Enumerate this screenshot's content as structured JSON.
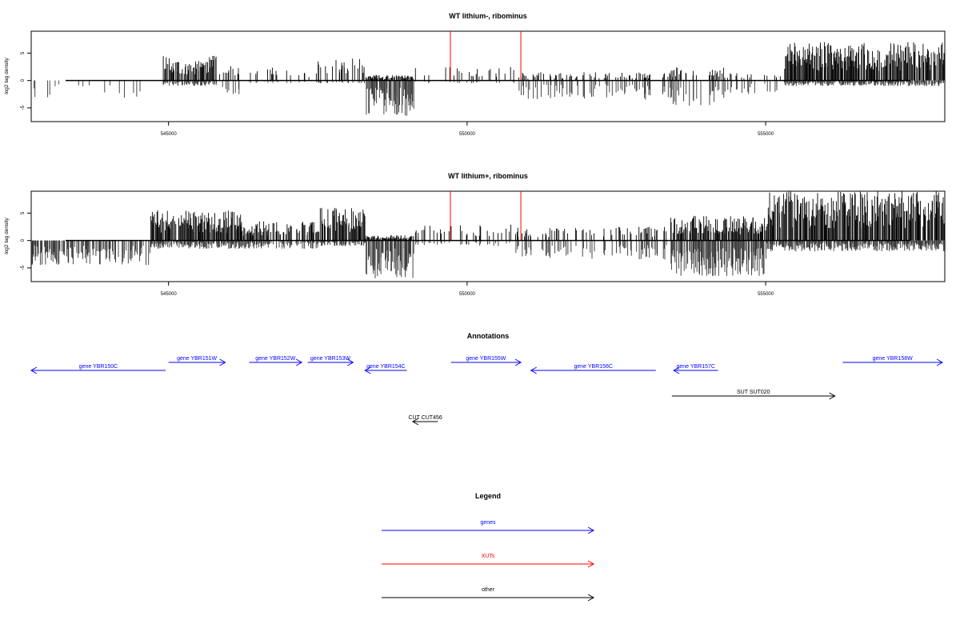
{
  "colors": {
    "genes": "#0000ff",
    "xuts": "#ff0000",
    "other": "#000000",
    "bars": "#000000"
  },
  "chart_data": [
    {
      "type": "bar",
      "title": "WT lithium-, ribominus",
      "ylabel": "log2 tag density",
      "xlim": [
        542700,
        558000
      ],
      "ylim": [
        -7.5,
        9
      ],
      "x_ticks": [
        545000,
        550000,
        555000
      ],
      "y_ticks": [
        -5,
        0,
        5
      ],
      "x_tick_labels": [
        "545000",
        "550000",
        "555000"
      ],
      "y_tick_labels": [
        "-5",
        "0",
        "5"
      ],
      "profile": [
        {
          "start": 542700,
          "end": 544700,
          "up": 0,
          "down": 3.5,
          "density": 0.12
        },
        {
          "start": 544900,
          "end": 545800,
          "up": 4.5,
          "down": 1.0,
          "density": 0.9
        },
        {
          "start": 545800,
          "end": 546200,
          "up": 3.0,
          "down": 2.5,
          "density": 0.3
        },
        {
          "start": 546200,
          "end": 547500,
          "up": 2.5,
          "down": 0.5,
          "density": 0.2
        },
        {
          "start": 547500,
          "end": 548300,
          "up": 4.0,
          "down": 0.5,
          "density": 0.35
        },
        {
          "start": 548300,
          "end": 549100,
          "up": 1.0,
          "down": 6.5,
          "density": 1.0
        },
        {
          "start": 549100,
          "end": 550800,
          "up": 2.5,
          "down": 0.5,
          "density": 0.2
        },
        {
          "start": 550800,
          "end": 553400,
          "up": 1.5,
          "down": 3.5,
          "density": 0.3
        },
        {
          "start": 553400,
          "end": 554300,
          "up": 2.5,
          "down": 5.0,
          "density": 0.5
        },
        {
          "start": 554300,
          "end": 555300,
          "up": 1.5,
          "down": 2.5,
          "density": 0.2
        },
        {
          "start": 555300,
          "end": 558000,
          "up": 7.0,
          "down": 1.0,
          "density": 1.0
        }
      ],
      "highlights": [
        {
          "x": 549720,
          "y": 9
        },
        {
          "x": 550900,
          "y": 9
        }
      ]
    },
    {
      "type": "bar",
      "title": "WT lithium+, ribominus",
      "ylabel": "log2 tag density",
      "xlim": [
        542700,
        558000
      ],
      "ylim": [
        -7.5,
        9
      ],
      "x_ticks": [
        545000,
        550000,
        555000
      ],
      "y_ticks": [
        -5,
        0,
        5
      ],
      "x_tick_labels": [
        "545000",
        "550000",
        "555000"
      ],
      "y_tick_labels": [
        "-5",
        "0",
        "5"
      ],
      "profile": [
        {
          "start": 542700,
          "end": 544700,
          "up": 0,
          "down": 4.5,
          "density": 0.8
        },
        {
          "start": 544700,
          "end": 546200,
          "up": 5.5,
          "down": 1.5,
          "density": 1.0
        },
        {
          "start": 546200,
          "end": 547500,
          "up": 3.5,
          "down": 1.5,
          "density": 0.7
        },
        {
          "start": 547500,
          "end": 548300,
          "up": 6.0,
          "down": 1.0,
          "density": 0.9
        },
        {
          "start": 548300,
          "end": 549100,
          "up": 1.0,
          "down": 7.0,
          "density": 1.0
        },
        {
          "start": 549100,
          "end": 550800,
          "up": 3.0,
          "down": 1.0,
          "density": 0.25
        },
        {
          "start": 550800,
          "end": 553400,
          "up": 2.5,
          "down": 3.5,
          "density": 0.35
        },
        {
          "start": 553400,
          "end": 555000,
          "up": 4.5,
          "down": 6.5,
          "density": 1.0
        },
        {
          "start": 555000,
          "end": 558000,
          "up": 9.0,
          "down": 2.0,
          "density": 1.0
        }
      ],
      "highlights": [
        {
          "x": 549720,
          "y": 9
        },
        {
          "x": 550900,
          "y": 9
        }
      ]
    }
  ],
  "annotations": {
    "title": "Annotations",
    "xlim": [
      542700,
      558000
    ],
    "items": [
      {
        "label": "gene YBR150C",
        "start": 542700,
        "end": 544950,
        "strand": "-",
        "category": "genes",
        "row": 0
      },
      {
        "label": "gene YBR151W",
        "start": 545000,
        "end": 545950,
        "strand": "+",
        "category": "genes",
        "row": 1
      },
      {
        "label": "gene YBR152W",
        "start": 546350,
        "end": 547230,
        "strand": "+",
        "category": "genes",
        "row": 1
      },
      {
        "label": "gene YBR153W",
        "start": 547330,
        "end": 548090,
        "strand": "+",
        "category": "genes",
        "row": 1
      },
      {
        "label": "gene YBR154C",
        "start": 548290,
        "end": 548990,
        "strand": "-",
        "category": "genes",
        "row": 0
      },
      {
        "label": "gene YBR155W",
        "start": 549730,
        "end": 550900,
        "strand": "+",
        "category": "genes",
        "row": 1
      },
      {
        "label": "gene YBR156C",
        "start": 551070,
        "end": 553160,
        "strand": "-",
        "category": "genes",
        "row": 0
      },
      {
        "label": "gene YBR157C",
        "start": 553460,
        "end": 554200,
        "strand": "-",
        "category": "genes",
        "row": 0
      },
      {
        "label": "gene YBR158W",
        "start": 556290,
        "end": 557960,
        "strand": "+",
        "category": "genes",
        "row": 1
      },
      {
        "label": "SUT SUT020",
        "start": 553430,
        "end": 556160,
        "strand": "+",
        "category": "other",
        "row": 2
      },
      {
        "label": "CUT CUT456",
        "start": 549090,
        "end": 549510,
        "strand": "-",
        "category": "other",
        "row": 3
      }
    ]
  },
  "legend": {
    "title": "Legend",
    "items": [
      {
        "label": "genes",
        "category": "genes"
      },
      {
        "label": "XUTs",
        "category": "xuts"
      },
      {
        "label": "other",
        "category": "other"
      }
    ]
  }
}
